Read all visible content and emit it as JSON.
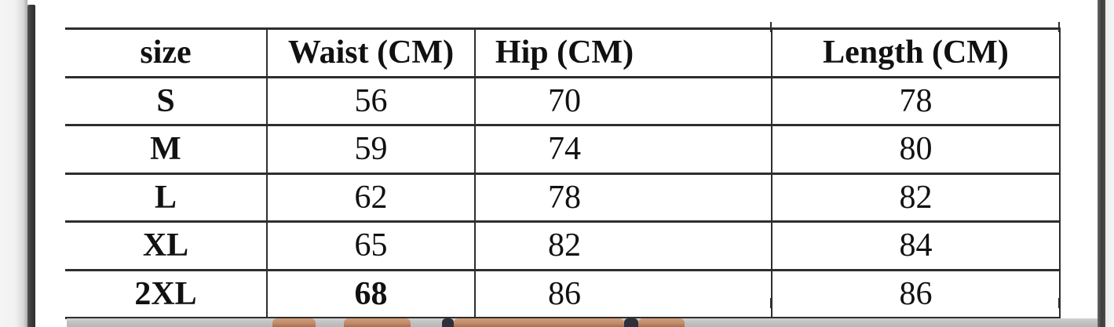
{
  "colors": {
    "line": "#2e2e2e",
    "text": "#111111",
    "bar_dark": "#3d3d3d",
    "margin_gray": "#f3f3f3",
    "strip_gray": "#c2c2c2",
    "skin": "#c08a68",
    "skin_shadow": "#a4704e",
    "garment_dark": "#30303a"
  },
  "chart_data": {
    "type": "table",
    "columns": [
      "size",
      "Waist (CM)",
      "Hip (CM)",
      "Length (CM)"
    ],
    "rows": [
      {
        "size": "S",
        "waist": "56",
        "hip": "70",
        "length": "78"
      },
      {
        "size": "M",
        "waist": "59",
        "hip": "74",
        "length": "80"
      },
      {
        "size": "L",
        "waist": "62",
        "hip": "78",
        "length": "82"
      },
      {
        "size": "XL",
        "waist": "65",
        "hip": "82",
        "length": "84"
      },
      {
        "size": "2XL",
        "waist": "68",
        "hip": "86",
        "length": "86"
      }
    ]
  }
}
